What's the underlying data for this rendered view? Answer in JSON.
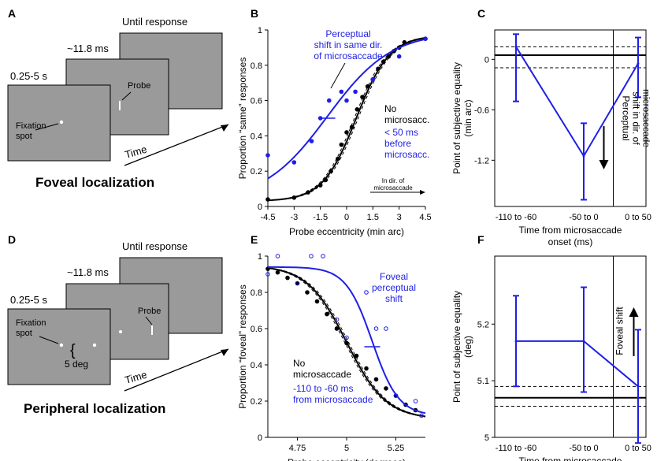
{
  "colors": {
    "blue": "#1f1fe6",
    "black": "#000000",
    "screen_gray": "#9a9a9a"
  },
  "panels": {
    "A": {
      "letter": "A",
      "screens": [
        "0.25-5 s",
        "~11.8 ms",
        "Until response"
      ],
      "fixation_label": "Fixation\nspot",
      "probe_label": "Probe",
      "time_label": "Time",
      "title": "Foveal localization"
    },
    "D": {
      "letter": "D",
      "screens": [
        "0.25-5 s",
        "~11.8 ms",
        "Until response"
      ],
      "fixation_label": "Fixation\nspot",
      "probe_label": "Probe",
      "deg_label": "5 deg",
      "time_label": "Time",
      "title": "Peripheral localization"
    }
  },
  "chart_data": [
    {
      "id": "B",
      "letter": "B",
      "type": "scatter",
      "xlabel": "Probe eccentricity (min arc)",
      "ylabel": "Proportion “same” responses",
      "xlim": [
        -4.5,
        4.5
      ],
      "ylim": [
        0,
        1
      ],
      "xticks": [
        -4.5,
        -3,
        -1.5,
        0,
        1.5,
        3,
        4.5
      ],
      "xtick_labels": [
        "-4.5",
        "-3",
        "-1.5",
        "0",
        "1.5",
        "3",
        "4.5"
      ],
      "yticks": [
        0,
        0.2,
        0.4,
        0.6,
        0.8,
        1
      ],
      "ytick_labels": [
        "0",
        "0.2",
        "0.4",
        "0.6",
        "0.8",
        "1"
      ],
      "annotations": {
        "perceptual_shift": "Perceptual\nshift in same dir.\nof microsaccade",
        "no_microsacc": "No\nmicrosacc.",
        "before": "< 50 ms\nbefore\nmicrosacc.",
        "direction": "In dir. of\nmicrosaccade"
      },
      "series": [
        {
          "color": "#000000",
          "points": [
            [
              -4.5,
              0.04
            ],
            [
              -3,
              0.05
            ],
            [
              -2.2,
              0.08
            ],
            [
              -1.5,
              0.12
            ],
            [
              -1.2,
              0.15
            ],
            [
              -0.9,
              0.2
            ],
            [
              -0.5,
              0.27
            ],
            [
              -0.3,
              0.35
            ],
            [
              0,
              0.42
            ],
            [
              0.3,
              0.45
            ],
            [
              0.6,
              0.55
            ],
            [
              0.9,
              0.62
            ],
            [
              1.2,
              0.68
            ],
            [
              1.5,
              0.72
            ],
            [
              1.8,
              0.78
            ],
            [
              2.1,
              0.82
            ],
            [
              2.4,
              0.85
            ],
            [
              2.7,
              0.88
            ],
            [
              3,
              0.9
            ],
            [
              3.3,
              0.93
            ],
            [
              4.5,
              0.95
            ]
          ],
          "fit": {
            "mid": 0.55,
            "slope": 1.05,
            "lower": 0.03,
            "upper": 0.97
          }
        },
        {
          "color": "#1f1fe6",
          "points": [
            [
              -4.5,
              0.29
            ],
            [
              -3,
              0.25
            ],
            [
              -2,
              0.37
            ],
            [
              -1.5,
              0.5
            ],
            [
              -1,
              0.6
            ],
            [
              -0.3,
              0.65
            ],
            [
              0,
              0.6
            ],
            [
              0.5,
              0.65
            ],
            [
              1.5,
              0.72
            ],
            [
              3,
              0.85
            ],
            [
              4.5,
              0.95
            ]
          ],
          "fit": {
            "mid": -1.1,
            "slope": 0.55,
            "lower": 0.03,
            "upper": 0.99
          },
          "marker_x": -1.1
        }
      ]
    },
    {
      "id": "C",
      "letter": "C",
      "type": "line",
      "xlabel": "Time from microsaccade\nonset (ms)",
      "ylabel": "Point of subjective equality\n(min arc)",
      "ylim": [
        -1.75,
        0.35
      ],
      "yticks": [
        0,
        -0.6,
        -1.2
      ],
      "ytick_labels": [
        "0",
        "-0.6",
        "-1.2"
      ],
      "categories": [
        "-110 to -60",
        "-50 to 0",
        "0 to 50"
      ],
      "values": [
        0.15,
        -1.15,
        -0.05
      ],
      "err": [
        [
          -0.5,
          0.3
        ],
        [
          -1.67,
          -0.76
        ],
        [
          -0.45,
          0.26
        ]
      ],
      "ref_line": 0.05,
      "ref_ci": [
        -0.1,
        0.15
      ],
      "annotation": "Perceptual\nshift in dir. of\nmicrosaccade"
    },
    {
      "id": "E",
      "letter": "E",
      "type": "scatter",
      "xlabel": "Probe eccentricity (degrees)",
      "ylabel": "Proportion “foveal” responses",
      "xlim": [
        4.6,
        5.4
      ],
      "ylim": [
        0,
        1
      ],
      "xticks": [
        4.75,
        5,
        5.25
      ],
      "xtick_labels": [
        "4.75",
        "5",
        "5.25"
      ],
      "yticks": [
        0,
        0.2,
        0.4,
        0.6,
        0.8,
        1
      ],
      "ytick_labels": [
        "0",
        "0.2",
        "0.4",
        "0.6",
        "0.8",
        "1"
      ],
      "annotations": {
        "foveal_shift": "Foveal\nperceptual\nshift",
        "no_microsaccade": "No\nmicrosaccade",
        "window": "-110 to -60 ms\nfrom microsaccade"
      },
      "series": [
        {
          "color": "#000000",
          "points": [
            [
              4.6,
              0.93
            ],
            [
              4.65,
              0.91
            ],
            [
              4.7,
              0.88
            ],
            [
              4.75,
              0.85
            ],
            [
              4.8,
              0.8
            ],
            [
              4.85,
              0.75
            ],
            [
              4.9,
              0.68
            ],
            [
              4.95,
              0.6
            ],
            [
              5,
              0.52
            ],
            [
              5.05,
              0.45
            ],
            [
              5.1,
              0.38
            ],
            [
              5.15,
              0.32
            ],
            [
              5.2,
              0.27
            ],
            [
              5.25,
              0.23
            ],
            [
              5.3,
              0.18
            ],
            [
              5.35,
              0.15
            ]
          ],
          "fit": {
            "mid": 5.0,
            "slope": -10,
            "lower": 0.1,
            "upper": 0.95
          }
        },
        {
          "color": "#1f1fe6",
          "points": [
            [
              4.6,
              0.9
            ],
            [
              4.65,
              1.0
            ],
            [
              4.75,
              0.85
            ],
            [
              4.82,
              1.0
            ],
            [
              4.88,
              1.0
            ],
            [
              4.95,
              0.65
            ],
            [
              5,
              0.55
            ],
            [
              5.1,
              0.8
            ],
            [
              5.15,
              0.6
            ],
            [
              5.2,
              0.6
            ],
            [
              5.25,
              0.23
            ],
            [
              5.35,
              0.2
            ],
            [
              5.38,
              0.12
            ]
          ],
          "fit": {
            "mid": 5.13,
            "slope": -15,
            "lower": 0.12,
            "upper": 0.94
          },
          "marker_x": 5.13
        }
      ]
    },
    {
      "id": "F",
      "letter": "F",
      "type": "line",
      "xlabel": "Time from microsaccade\nonset (ms)",
      "ylabel": "Point of subjective equality\n(deg)",
      "ylim": [
        5.0,
        5.32
      ],
      "yticks": [
        5,
        5.1,
        5.2
      ],
      "ytick_labels": [
        "5",
        "5.1",
        "5.2"
      ],
      "categories": [
        "-110 to -60",
        "-50 to 0",
        "0 to 50"
      ],
      "values": [
        5.17,
        5.17,
        5.09
      ],
      "err": [
        [
          5.09,
          5.25
        ],
        [
          5.08,
          5.265
        ],
        [
          4.99,
          5.19
        ]
      ],
      "ref_line": 5.07,
      "ref_ci": [
        5.055,
        5.09
      ],
      "annotation": "Foveal shift"
    }
  ]
}
